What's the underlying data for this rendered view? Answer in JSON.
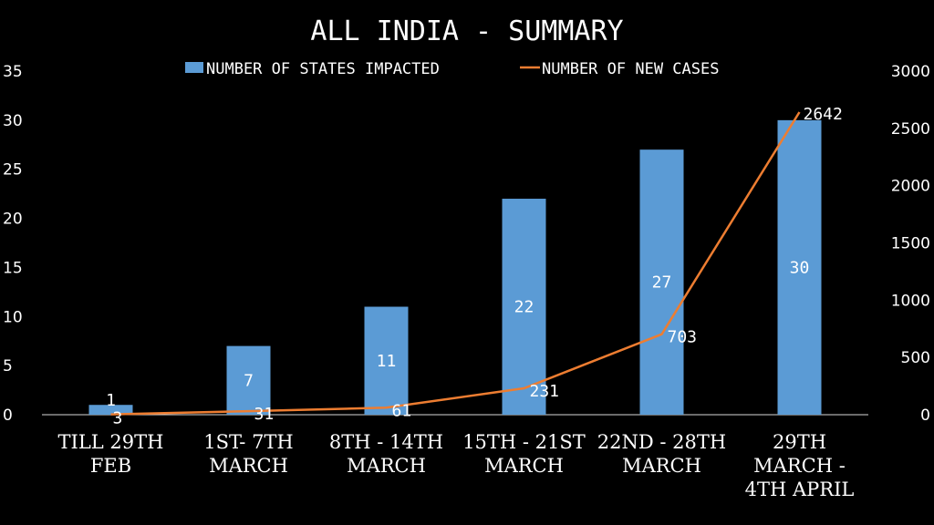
{
  "chart_data": {
    "type": "bar",
    "title": "ALL INDIA - SUMMARY",
    "categories": [
      [
        "TILL 29TH",
        "FEB"
      ],
      [
        "1ST- 7TH",
        "MARCH"
      ],
      [
        "8TH - 14TH",
        "MARCH"
      ],
      [
        "15TH - 21ST",
        "MARCH"
      ],
      [
        "22ND - 28TH",
        "MARCH"
      ],
      [
        "29TH",
        "MARCH -",
        "4TH APRIL"
      ]
    ],
    "series": [
      {
        "name": "NUMBER OF STATES IMPACTED",
        "type": "bar",
        "axis": "left",
        "color": "#5b9bd5",
        "values": [
          1,
          7,
          11,
          22,
          27,
          30
        ],
        "data_labels": [
          "1",
          "7",
          "11",
          "22",
          "27",
          "30"
        ]
      },
      {
        "name": "NUMBER OF NEW CASES",
        "type": "line",
        "axis": "right",
        "color": "#ed7d31",
        "values": [
          3,
          31,
          61,
          231,
          703,
          2642
        ],
        "data_labels": [
          "3",
          "31",
          "61",
          "231",
          "703",
          "2642"
        ]
      }
    ],
    "y_left": {
      "min": 0,
      "max": 35,
      "ticks": [
        "0",
        "5",
        "10",
        "15",
        "20",
        "25",
        "30",
        "35"
      ]
    },
    "y_right": {
      "min": 0,
      "max": 3000,
      "ticks": [
        "0",
        "500",
        "1000",
        "1500",
        "2000",
        "2500",
        "3000"
      ]
    },
    "grid": false,
    "legend_position": "top"
  }
}
